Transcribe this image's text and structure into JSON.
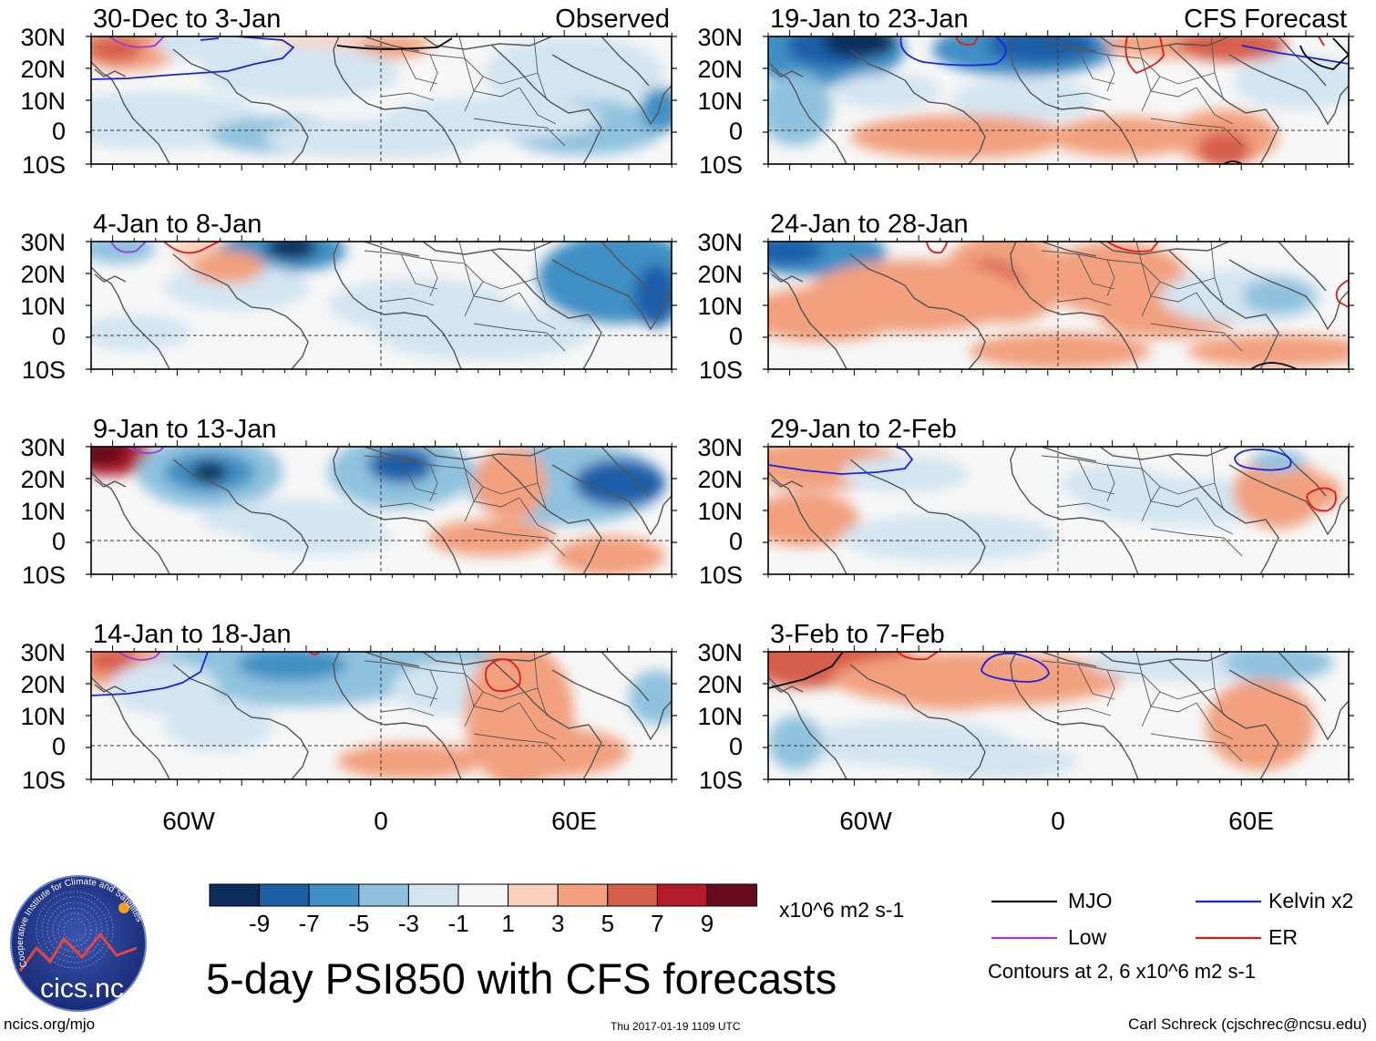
{
  "title": "5-day PSI850 with CFS forecasts",
  "labels": {
    "observed": "Observed",
    "forecast": "CFS Forecast"
  },
  "panels": [
    {
      "period": "30-Dec to 3-Jan",
      "column": "observed"
    },
    {
      "period": "4-Jan to 8-Jan",
      "column": "observed"
    },
    {
      "period": "9-Jan to 13-Jan",
      "column": "observed"
    },
    {
      "period": "14-Jan to 18-Jan",
      "column": "observed"
    },
    {
      "period": "19-Jan to 23-Jan",
      "column": "forecast"
    },
    {
      "period": "24-Jan to 28-Jan",
      "column": "forecast"
    },
    {
      "period": "29-Jan to 2-Feb",
      "column": "forecast"
    },
    {
      "period": "3-Feb to 7-Feb",
      "column": "forecast"
    }
  ],
  "axes": {
    "lat_labels": [
      "30N",
      "20N",
      "10N",
      "0",
      "10S"
    ],
    "lon_labels": [
      "60W",
      "0",
      "60E"
    ]
  },
  "colorbar": {
    "units": "x10^6 m2 s-1",
    "tick_labels": [
      "-9",
      "-7",
      "-5",
      "-3",
      "-1",
      "1",
      "3",
      "5",
      "7",
      "9"
    ],
    "colors": [
      "#0b2d5c",
      "#1a5fa8",
      "#3f8fc4",
      "#8fc2de",
      "#d3e5f1",
      "#f7f7f7",
      "#fbd3bd",
      "#f2a07e",
      "#d65f4c",
      "#b31b2c",
      "#690b1c"
    ]
  },
  "legend": {
    "items": [
      {
        "label": "MJO",
        "color": "#000000"
      },
      {
        "label": "Kelvin x2",
        "color": "#1a22e0"
      },
      {
        "label": "Low",
        "color": "#9b3ae0"
      },
      {
        "label": "ER",
        "color": "#e01a1a"
      }
    ],
    "note": "Contours at 2, 6 x10^6 m2 s-1"
  },
  "logo": {
    "text": "cics.nc",
    "arc_text": "Cooperative Institute for Climate and Satellites"
  },
  "footer": {
    "site": "ncics.org/mjo",
    "timestamp": "Thu 2017-01-19 1109 UTC",
    "author": "Carl Schreck (cjschrec@ncsu.edu)"
  }
}
